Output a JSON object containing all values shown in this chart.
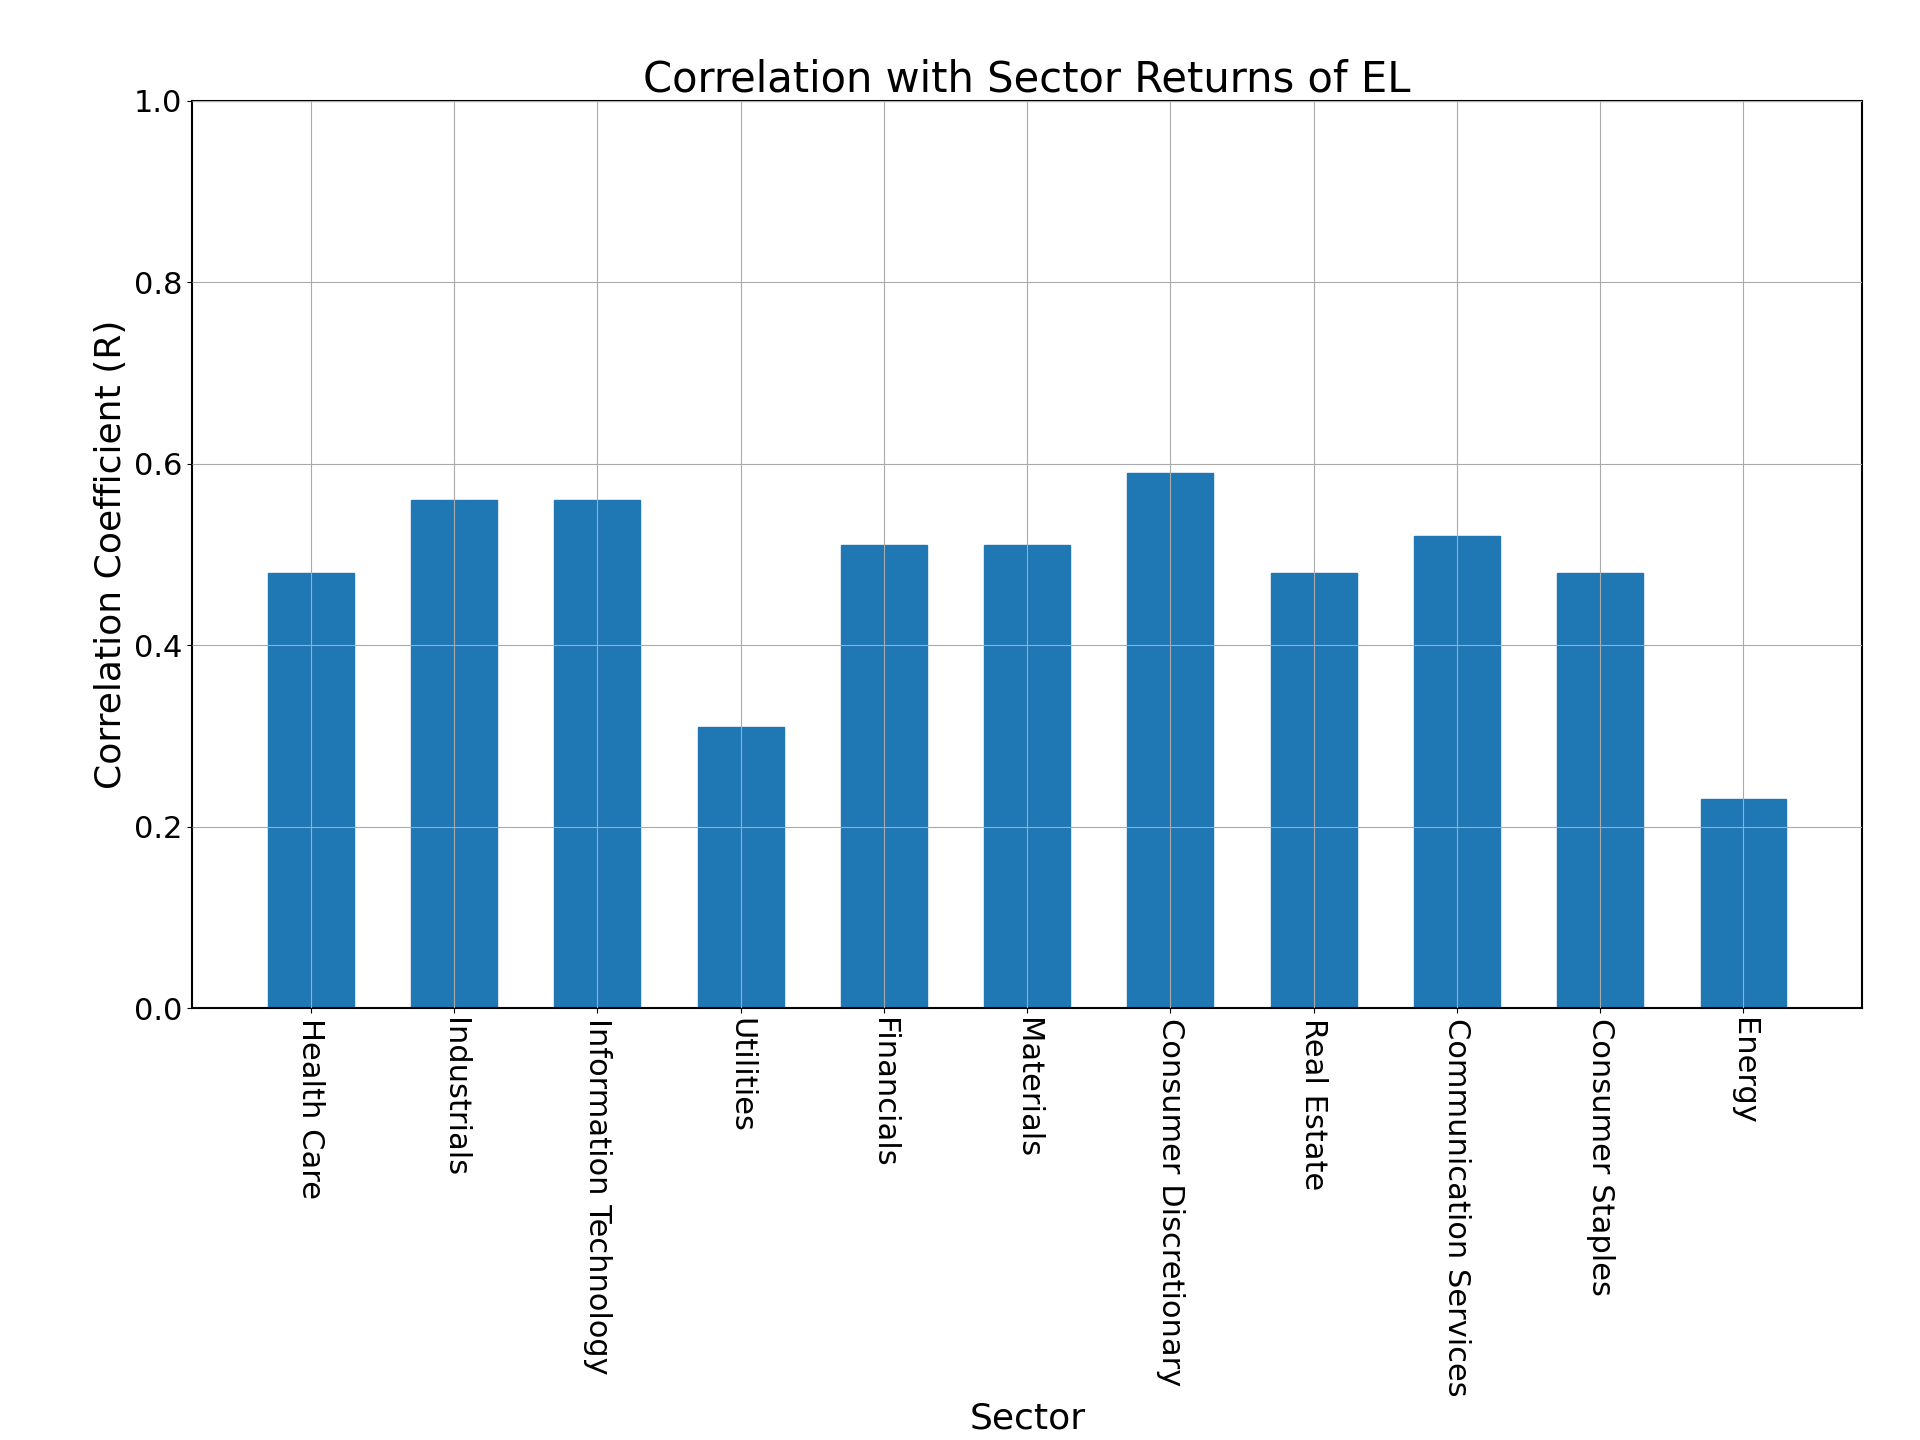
{
  "title": "Correlation with Sector Returns of EL",
  "xlabel": "Sector",
  "ylabel": "Correlation Coefficient (R)",
  "categories": [
    "Health Care",
    "Industrials",
    "Information Technology",
    "Utilities",
    "Financials",
    "Materials",
    "Consumer Discretionary",
    "Real Estate",
    "Communication Services",
    "Consumer Staples",
    "Energy"
  ],
  "values": [
    0.48,
    0.56,
    0.56,
    0.31,
    0.51,
    0.51,
    0.59,
    0.48,
    0.52,
    0.48,
    0.23
  ],
  "bar_color": "#1f77b4",
  "ylim": [
    0.0,
    1.0
  ],
  "yticks": [
    0.0,
    0.2,
    0.4,
    0.6,
    0.8,
    1.0
  ],
  "title_fontsize": 30,
  "label_fontsize": 26,
  "tick_fontsize": 22,
  "background_color": "#ffffff",
  "grid": true
}
